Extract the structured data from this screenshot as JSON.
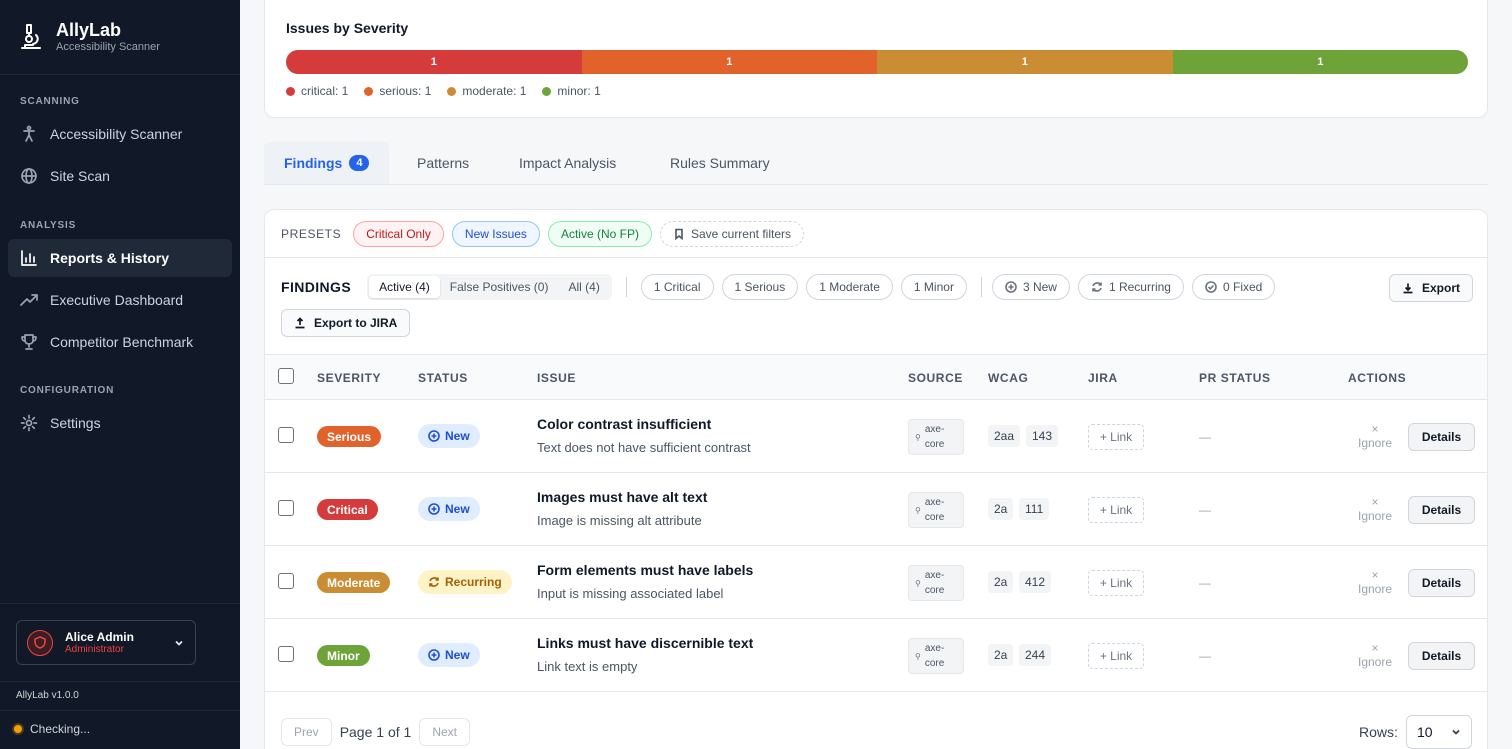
{
  "app": {
    "name": "AllyLab",
    "subtitle": "Accessibility Scanner",
    "version": "AllyLab v1.0.0",
    "status_text": "Checking..."
  },
  "sidebar": {
    "sections": [
      "SCANNING",
      "ANALYSIS",
      "CONFIGURATION"
    ],
    "items": [
      {
        "label": "Accessibility Scanner",
        "icon": "accessibility-icon"
      },
      {
        "label": "Site Scan",
        "icon": "globe-icon"
      },
      {
        "label": "Reports & History",
        "icon": "bar-chart-icon",
        "active": true
      },
      {
        "label": "Executive Dashboard",
        "icon": "trending-up-icon"
      },
      {
        "label": "Competitor Benchmark",
        "icon": "trophy-icon"
      },
      {
        "label": "Settings",
        "icon": "gear-icon"
      }
    ],
    "user": {
      "name": "Alice Admin",
      "role": "Administrator"
    }
  },
  "severity": {
    "title": "Issues by Severity",
    "segments": [
      {
        "key": "critical",
        "count": "1",
        "color": "#d63b3b"
      },
      {
        "key": "serious",
        "count": "1",
        "color": "#e2622b"
      },
      {
        "key": "moderate",
        "count": "1",
        "color": "#cb8d33"
      },
      {
        "key": "minor",
        "count": "1",
        "color": "#6ea33a"
      }
    ],
    "legend": [
      "critical: 1",
      "serious: 1",
      "moderate: 1",
      "minor: 1"
    ]
  },
  "tabs": [
    {
      "label": "Findings",
      "badge": "4",
      "active": true
    },
    {
      "label": "Patterns"
    },
    {
      "label": "Impact Analysis"
    },
    {
      "label": "Rules Summary"
    }
  ],
  "presets": {
    "label": "PRESETS",
    "items": [
      "Critical Only",
      "New Issues",
      "Active (No FP)"
    ],
    "save_label": "Save current filters"
  },
  "findings": {
    "title": "FINDINGS",
    "views": [
      "Active (4)",
      "False Positives (0)",
      "All (4)"
    ],
    "severity_filters": [
      "1 Critical",
      "1 Serious",
      "1 Moderate",
      "1 Minor"
    ],
    "status_filters": [
      "3 New",
      "1 Recurring",
      "0 Fixed"
    ],
    "export_label": "Export",
    "jira_export_label": "Export to JIRA"
  },
  "table": {
    "columns": [
      "SEVERITY",
      "STATUS",
      "ISSUE",
      "SOURCE",
      "WCAG",
      "JIRA",
      "PR STATUS",
      "ACTIONS"
    ],
    "rows": [
      {
        "severity": "Serious",
        "sev_color": "#e2622b",
        "status": "New",
        "title": "Color contrast insufficient",
        "desc": "Text does not have sufficient contrast",
        "source1": "axe-",
        "source2": "core",
        "wcag": [
          "2aa",
          "143"
        ],
        "jira": "+ Link",
        "pr": "—",
        "ignore1": "×",
        "ignore2": "Ignore",
        "details": "Details"
      },
      {
        "severity": "Critical",
        "sev_color": "#d63b3b",
        "status": "New",
        "title": "Images must have alt text",
        "desc": "Image is missing alt attribute",
        "source1": "axe-",
        "source2": "core",
        "wcag": [
          "2a",
          "111"
        ],
        "jira": "+ Link",
        "pr": "—",
        "ignore1": "×",
        "ignore2": "Ignore",
        "details": "Details"
      },
      {
        "severity": "Moderate",
        "sev_color": "#cb8d33",
        "status": "Recurring",
        "title": "Form elements must have labels",
        "desc": "Input is missing associated label",
        "source1": "axe-",
        "source2": "core",
        "wcag": [
          "2a",
          "412"
        ],
        "jira": "+ Link",
        "pr": "—",
        "ignore1": "×",
        "ignore2": "Ignore",
        "details": "Details"
      },
      {
        "severity": "Minor",
        "sev_color": "#6ea33a",
        "status": "New",
        "title": "Links must have discernible text",
        "desc": "Link text is empty",
        "source1": "axe-",
        "source2": "core",
        "wcag": [
          "2a",
          "244"
        ],
        "jira": "+ Link",
        "pr": "—",
        "ignore1": "×",
        "ignore2": "Ignore",
        "details": "Details"
      }
    ]
  },
  "pagination": {
    "prev": "Prev",
    "text": "Page 1 of 1",
    "next": "Next",
    "rows_label": "Rows:",
    "rows_value": "10"
  }
}
